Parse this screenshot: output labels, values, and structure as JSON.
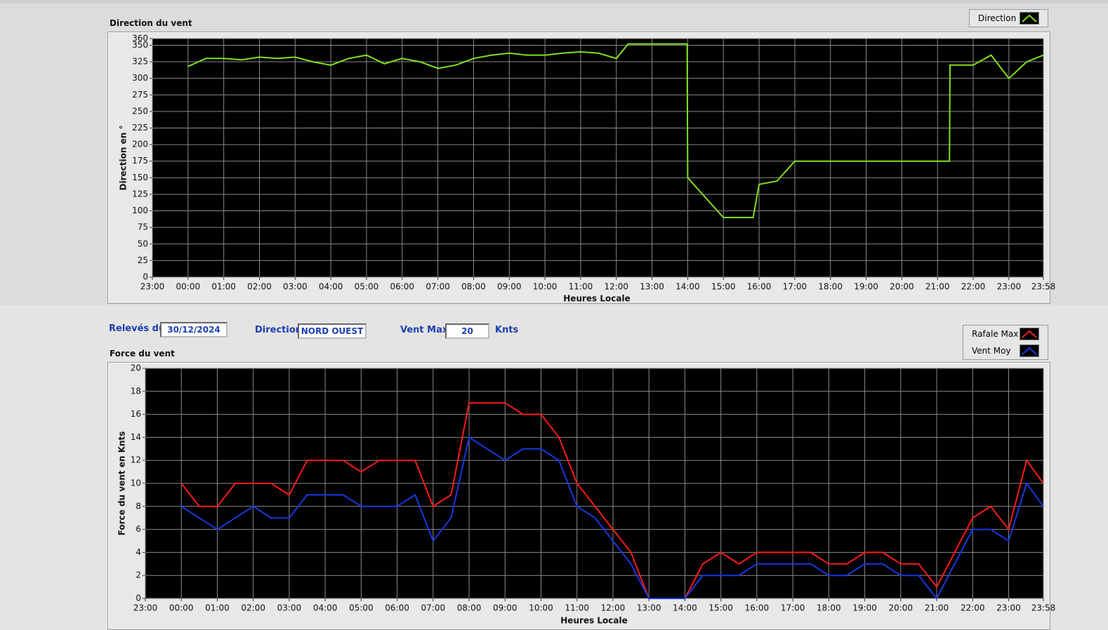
{
  "chart_data": [
    {
      "type": "line",
      "title": "Direction du vent",
      "x_label": "Heures Locale",
      "y_label": "Direction en °",
      "x": [
        "00:00",
        "00:30",
        "01:00",
        "01:30",
        "02:00",
        "02:30",
        "03:00",
        "03:30",
        "04:00",
        "04:30",
        "05:00",
        "05:30",
        "06:00",
        "06:30",
        "07:00",
        "07:30",
        "08:00",
        "08:30",
        "09:00",
        "09:30",
        "10:00",
        "10:30",
        "11:00",
        "11:30",
        "12:00",
        "12:20",
        "13:00",
        "13:59",
        "14:00",
        "14:30",
        "15:00",
        "15:50",
        "16:00",
        "16:30",
        "17:00",
        "21:20",
        "21:21",
        "22:00",
        "22:30",
        "23:00",
        "23:30",
        "23:58"
      ],
      "series": [
        {
          "name": "Direction",
          "color": "#7fe01e",
          "values": [
            318,
            330,
            330,
            328,
            332,
            330,
            332,
            325,
            320,
            330,
            335,
            322,
            330,
            325,
            315,
            320,
            330,
            335,
            338,
            335,
            335,
            338,
            340,
            338,
            330,
            352,
            352,
            352,
            150,
            120,
            90,
            90,
            140,
            145,
            175,
            175,
            320,
            320,
            335,
            300,
            325,
            335
          ]
        }
      ],
      "xlim": [
        "23:00",
        "23:58"
      ],
      "xticks": [
        "23:00",
        "00:00",
        "01:00",
        "02:00",
        "03:00",
        "04:00",
        "05:00",
        "06:00",
        "07:00",
        "08:00",
        "09:00",
        "10:00",
        "11:00",
        "12:00",
        "13:00",
        "14:00",
        "15:00",
        "16:00",
        "17:00",
        "18:00",
        "19:00",
        "20:00",
        "21:00",
        "22:00",
        "23:00",
        "23:58"
      ],
      "ylim": [
        0,
        360
      ],
      "yticks": [
        0,
        25,
        50,
        75,
        100,
        125,
        150,
        175,
        200,
        225,
        250,
        275,
        300,
        325,
        350,
        360
      ],
      "grid": true
    },
    {
      "type": "line",
      "title": "Force du vent",
      "x_label": "Heures Locale",
      "y_label": "Force du vent en Knts",
      "x": [
        "00:00",
        "00:30",
        "01:00",
        "01:30",
        "02:00",
        "02:30",
        "03:00",
        "03:30",
        "04:00",
        "04:30",
        "05:00",
        "05:30",
        "06:00",
        "06:30",
        "07:00",
        "07:30",
        "08:00",
        "08:30",
        "09:00",
        "09:30",
        "10:00",
        "10:30",
        "11:00",
        "11:30",
        "12:00",
        "12:30",
        "13:00",
        "13:30",
        "14:00",
        "14:30",
        "15:00",
        "15:30",
        "16:00",
        "16:30",
        "17:00",
        "17:30",
        "18:00",
        "18:30",
        "19:00",
        "19:30",
        "20:00",
        "20:30",
        "21:00",
        "21:30",
        "22:00",
        "22:30",
        "23:00",
        "23:30",
        "23:58"
      ],
      "series": [
        {
          "name": "Rafale Max",
          "color": "#ff1a1a",
          "values": [
            10,
            8,
            8,
            10,
            10,
            10,
            9,
            12,
            12,
            12,
            11,
            12,
            12,
            12,
            8,
            9,
            17,
            17,
            17,
            16,
            16,
            14,
            10,
            8,
            6,
            4,
            0,
            0,
            0,
            3,
            4,
            3,
            4,
            4,
            4,
            4,
            3,
            3,
            4,
            4,
            3,
            3,
            1,
            4,
            7,
            8,
            6,
            12,
            10
          ]
        },
        {
          "name": "Vent Moy",
          "color": "#1638e0",
          "values": [
            8,
            7,
            6,
            7,
            8,
            7,
            7,
            9,
            9,
            9,
            8,
            8,
            8,
            9,
            5,
            7,
            14,
            13,
            12,
            13,
            13,
            12,
            8,
            7,
            5,
            3,
            0,
            0,
            0,
            2,
            2,
            2,
            3,
            3,
            3,
            3,
            2,
            2,
            3,
            3,
            2,
            2,
            0,
            3,
            6,
            6,
            5,
            10,
            8
          ]
        }
      ],
      "xlim": [
        "23:00",
        "23:58"
      ],
      "xticks": [
        "23:00",
        "00:00",
        "01:00",
        "02:00",
        "03:00",
        "04:00",
        "05:00",
        "06:00",
        "07:00",
        "08:00",
        "09:00",
        "10:00",
        "11:00",
        "12:00",
        "13:00",
        "14:00",
        "15:00",
        "16:00",
        "17:00",
        "18:00",
        "19:00",
        "20:00",
        "21:00",
        "22:00",
        "23:00",
        "23:58"
      ],
      "ylim": [
        0,
        20
      ],
      "yticks": [
        0,
        2,
        4,
        6,
        8,
        10,
        12,
        14,
        16,
        18,
        20
      ],
      "grid": true
    }
  ],
  "form": {
    "date_label": "Relevés du",
    "date": "30/12/2024",
    "direction_label": "Direction",
    "direction": "NORD OUEST",
    "vent_max_label": "Vent Max",
    "vent_max": "20",
    "unit": "Knts"
  }
}
